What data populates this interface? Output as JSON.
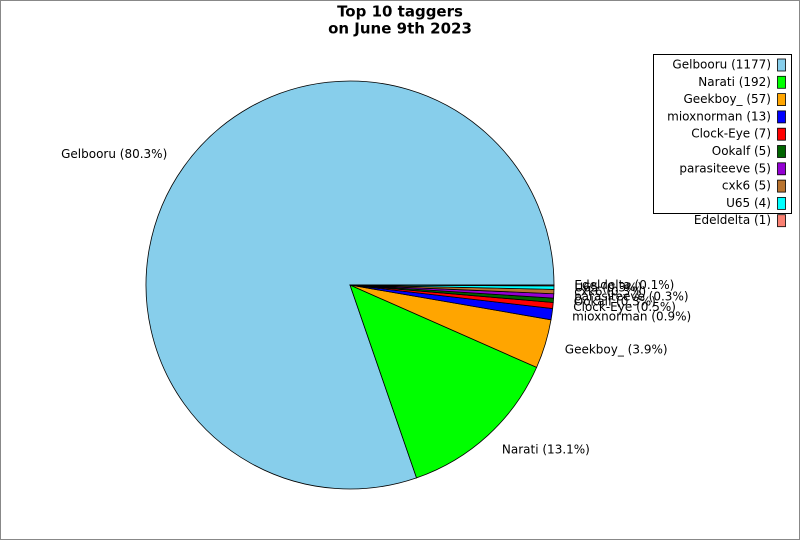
{
  "chart_data": {
    "type": "pie",
    "title": [
      "Top 10 taggers",
      "on June 9th 2023"
    ],
    "categories": [
      "Gelbooru",
      "Narati",
      "Geekboy_",
      "mioxnorman",
      "Clock-Eye",
      "Ookalf",
      "parasiteeve",
      "cxk6",
      "U65",
      "Edeldelta"
    ],
    "values": [
      1177,
      192,
      57,
      13,
      7,
      5,
      5,
      5,
      4,
      1
    ],
    "legend_labels": [
      "Gelbooru (1177)",
      "Narati (192)",
      "Geekboy_ (57)",
      "mioxnorman (13)",
      "Clock-Eye (7)",
      "Ookalf (5)",
      "parasiteeve (5)",
      "cxk6 (5)",
      "U65 (4)",
      "Edeldelta (1)"
    ],
    "value_labels": [
      "Gelbooru (80.3%)",
      "Narati (13.1%)",
      "Geekboy_ (3.9%)",
      "mioxnorman (0.9%)",
      "Clock-Eye (0.5%)",
      "Ookalf (0.3%)",
      "parasiteeve (0.3%)",
      "cxk6 (0.3%)",
      "U65 (0.3%)",
      "Edeldelta (0.1%)"
    ],
    "colors": [
      "#87ceeb",
      "#00ff00",
      "#ffa500",
      "#0000ff",
      "#ff0000",
      "#006400",
      "#9400d3",
      "#b8732e",
      "#00ffff",
      "#fa8072"
    ],
    "legend_position": "upper right"
  }
}
